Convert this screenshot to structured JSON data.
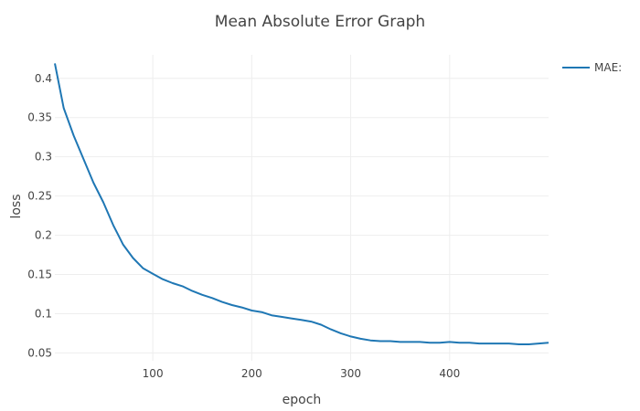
{
  "chart_data": {
    "type": "line",
    "title": "Mean Absolute Error Graph",
    "xlabel": "epoch",
    "ylabel": "loss",
    "xlim": [
      1,
      500
    ],
    "ylim": [
      0.04,
      0.43
    ],
    "xticks": [
      100,
      200,
      300,
      400
    ],
    "yticks": [
      0.05,
      0.1,
      0.15,
      0.2,
      0.25,
      0.3,
      0.35,
      0.4
    ],
    "ytick_labels": [
      "0.05",
      "0.1",
      "0.15",
      "0.2",
      "0.25",
      "0.3",
      "0.35",
      "0.4"
    ],
    "grid": true,
    "legend_position": "top-right",
    "series": [
      {
        "name": "MAE:",
        "color": "#1f77b4",
        "x": [
          1,
          10,
          20,
          30,
          40,
          50,
          60,
          70,
          80,
          90,
          100,
          110,
          120,
          130,
          140,
          150,
          160,
          170,
          180,
          190,
          200,
          210,
          220,
          230,
          240,
          250,
          260,
          270,
          280,
          290,
          300,
          310,
          320,
          330,
          340,
          350,
          360,
          370,
          380,
          390,
          400,
          410,
          420,
          430,
          440,
          450,
          460,
          470,
          480,
          490,
          500
        ],
        "y": [
          0.419,
          0.362,
          0.327,
          0.297,
          0.267,
          0.242,
          0.213,
          0.188,
          0.171,
          0.158,
          0.151,
          0.144,
          0.139,
          0.135,
          0.129,
          0.124,
          0.12,
          0.115,
          0.111,
          0.108,
          0.104,
          0.102,
          0.098,
          0.096,
          0.094,
          0.092,
          0.09,
          0.086,
          0.08,
          0.075,
          0.071,
          0.068,
          0.066,
          0.065,
          0.065,
          0.064,
          0.064,
          0.064,
          0.063,
          0.063,
          0.064,
          0.063,
          0.063,
          0.062,
          0.062,
          0.062,
          0.062,
          0.061,
          0.061,
          0.062,
          0.063
        ]
      }
    ]
  }
}
